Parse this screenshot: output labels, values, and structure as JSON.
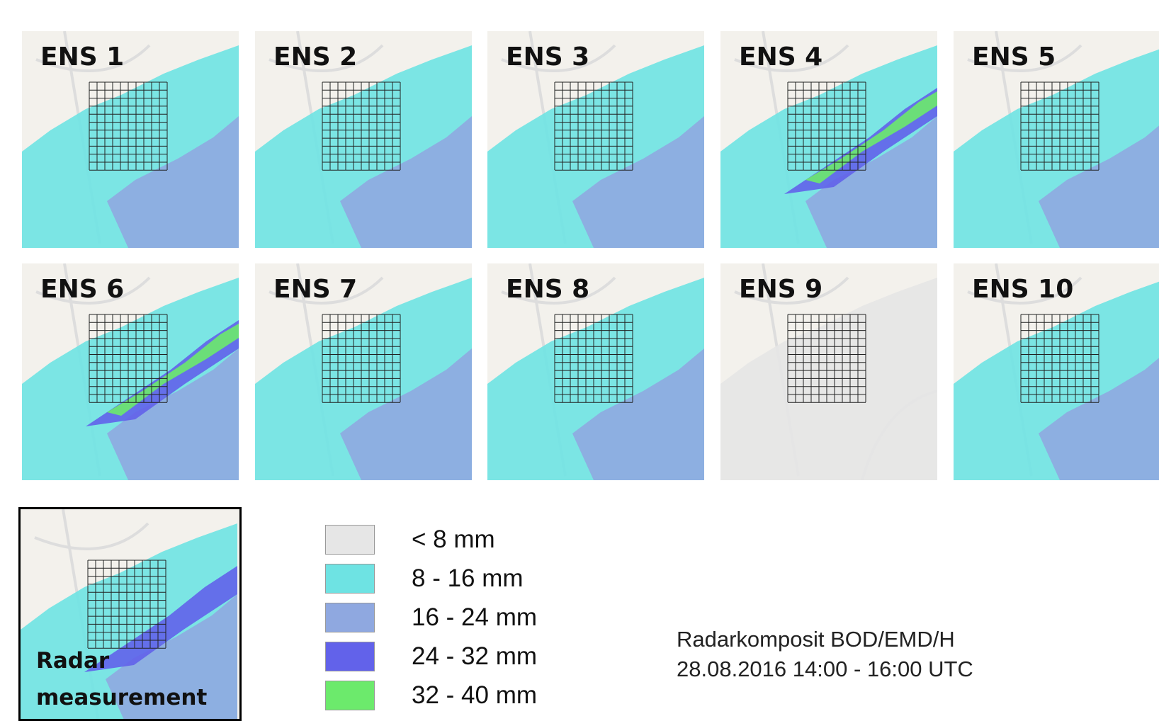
{
  "panels": [
    {
      "label": "ENS 1"
    },
    {
      "label": "ENS 2"
    },
    {
      "label": "ENS 3"
    },
    {
      "label": "ENS 4"
    },
    {
      "label": "ENS 5"
    },
    {
      "label": "ENS 6"
    },
    {
      "label": "ENS 7"
    },
    {
      "label": "ENS 8"
    },
    {
      "label": "ENS 9"
    },
    {
      "label": "ENS 10"
    }
  ],
  "radar": {
    "label_lines": [
      "Radar",
      "measurement"
    ]
  },
  "legend": {
    "items": [
      {
        "label": "< 8 mm",
        "color": "#e6e6e6"
      },
      {
        "label": "8 - 16 mm",
        "color": "#6ee3e3"
      },
      {
        "label": "16 - 24 mm",
        "color": "#8fa8e0"
      },
      {
        "label": "24 - 32 mm",
        "color": "#6262ea"
      },
      {
        "label": "32 - 40 mm",
        "color": "#6cea6c"
      }
    ]
  },
  "caption": {
    "lines": [
      "Radarkomposit BOD/EMD/H",
      "28.08.2016 14:00 - 16:00 UTC"
    ]
  }
}
